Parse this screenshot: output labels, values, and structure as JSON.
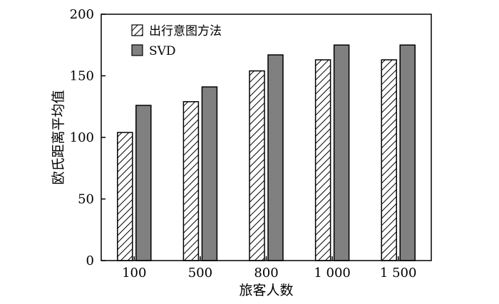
{
  "chart_data": {
    "type": "bar",
    "categories": [
      "100",
      "500",
      "800",
      "1 000",
      "1 500"
    ],
    "series": [
      {
        "name": "出行意图方法",
        "values": [
          104,
          129,
          154,
          163,
          163
        ],
        "pattern": "hatch",
        "color": "#ffffff"
      },
      {
        "name": "SVD",
        "values": [
          126,
          141,
          167,
          175,
          175
        ],
        "pattern": "solid",
        "color": "#808080"
      }
    ],
    "xlabel": "旅客人数",
    "ylabel": "欧氏距离平均值",
    "ylim": [
      0,
      200
    ],
    "yticks": [
      0,
      50,
      100,
      150,
      200
    ],
    "grid": false,
    "legend": "top-left"
  }
}
